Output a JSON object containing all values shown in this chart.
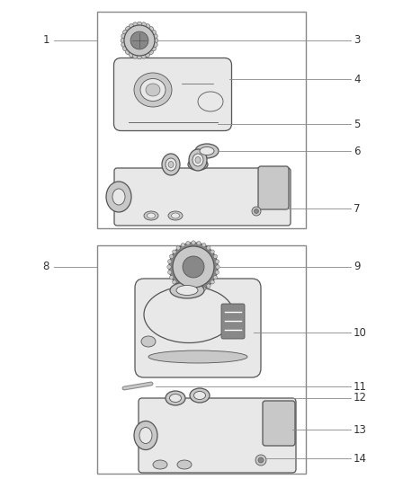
{
  "background": "#ffffff",
  "fig_w": 4.38,
  "fig_h": 5.33,
  "dpi": 100,
  "lc": "#888888",
  "tc": "#333333",
  "outline": "#555555",
  "light": "#e8e8e8",
  "mid": "#c8c8c8",
  "dark": "#888888",
  "darker": "#555555",
  "white": "#ffffff"
}
